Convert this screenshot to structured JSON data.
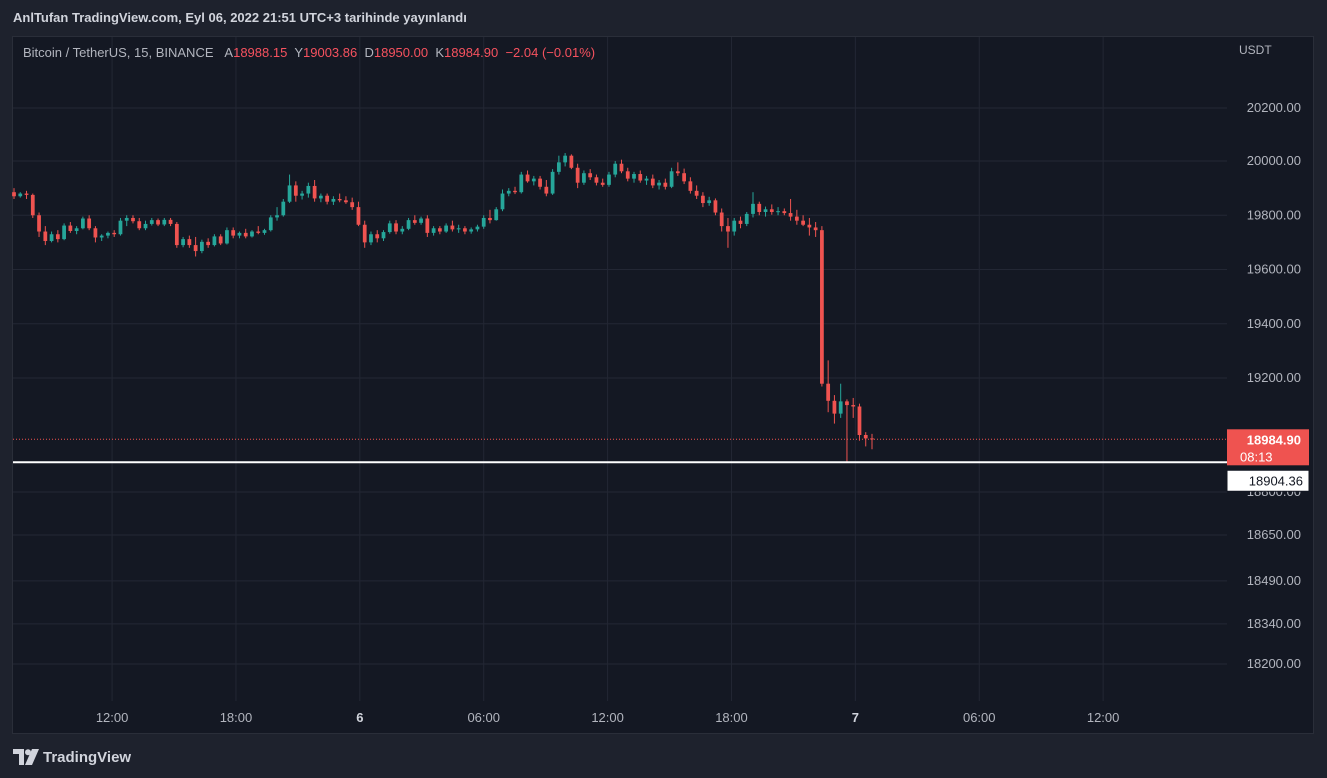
{
  "header": {
    "text": "AnlTufan TradingView.com, Eyl 06, 2022 21:51 UTC+3 tarihinde yayınlandı"
  },
  "legend": {
    "symbol": "Bitcoin / TetherUS, 15, BINANCE",
    "open_label": "A",
    "open": "18988.15",
    "high_label": "Y",
    "high": "19003.86",
    "low_label": "D",
    "low": "18950.00",
    "close_label": "K",
    "close": "18984.90",
    "change": "−2.04 (−0.01%)"
  },
  "axis": {
    "currency": "USDT"
  },
  "footer": {
    "brand": "TradingView"
  },
  "colors": {
    "up": "#26a69a",
    "down": "#ef5350",
    "background": "#141823",
    "grid": "#232734",
    "text": "#b2b5be"
  },
  "chart_data": {
    "type": "candlestick",
    "y_ticks": [
      "20200.00",
      "20000.00",
      "19800.00",
      "19600.00",
      "19400.00",
      "19200.00",
      "18800.00",
      "18650.00",
      "18490.00",
      "18340.00",
      "18200.00"
    ],
    "y_tick_values": [
      20200,
      20000,
      19800,
      19600,
      19400,
      19200,
      18800,
      18650,
      18490,
      18340,
      18200
    ],
    "x_ticks": [
      "12:00",
      "18:00",
      "6",
      "06:00",
      "12:00",
      "18:00",
      "7",
      "06:00",
      "12:00"
    ],
    "x_tick_hours": [
      12,
      18,
      24,
      30,
      36,
      42,
      48,
      54,
      60
    ],
    "x_tick_bold": [
      false,
      false,
      true,
      false,
      false,
      false,
      true,
      false,
      false
    ],
    "hour_range": [
      7.2,
      66
    ],
    "current_price": {
      "label": "18984.90",
      "countdown": "08:13",
      "value": 18984.9
    },
    "horizontal_line": {
      "label": "18904.36",
      "value": 18904.36
    },
    "candles": [
      {
        "o": 19885,
        "h": 19900,
        "l": 19860,
        "c": 19870
      },
      {
        "o": 19870,
        "h": 19885,
        "l": 19865,
        "c": 19880
      },
      {
        "o": 19880,
        "h": 19890,
        "l": 19860,
        "c": 19875
      },
      {
        "o": 19875,
        "h": 19880,
        "l": 19790,
        "c": 19800
      },
      {
        "o": 19800,
        "h": 19810,
        "l": 19720,
        "c": 19740
      },
      {
        "o": 19740,
        "h": 19760,
        "l": 19690,
        "c": 19705
      },
      {
        "o": 19705,
        "h": 19740,
        "l": 19700,
        "c": 19730
      },
      {
        "o": 19730,
        "h": 19745,
        "l": 19700,
        "c": 19712
      },
      {
        "o": 19712,
        "h": 19770,
        "l": 19708,
        "c": 19762
      },
      {
        "o": 19762,
        "h": 19775,
        "l": 19735,
        "c": 19742
      },
      {
        "o": 19742,
        "h": 19760,
        "l": 19730,
        "c": 19752
      },
      {
        "o": 19752,
        "h": 19795,
        "l": 19748,
        "c": 19788
      },
      {
        "o": 19788,
        "h": 19800,
        "l": 19745,
        "c": 19752
      },
      {
        "o": 19752,
        "h": 19760,
        "l": 19700,
        "c": 19718
      },
      {
        "o": 19718,
        "h": 19730,
        "l": 19705,
        "c": 19725
      },
      {
        "o": 19725,
        "h": 19740,
        "l": 19715,
        "c": 19735
      },
      {
        "o": 19735,
        "h": 19745,
        "l": 19720,
        "c": 19730
      },
      {
        "o": 19730,
        "h": 19790,
        "l": 19725,
        "c": 19780
      },
      {
        "o": 19780,
        "h": 19800,
        "l": 19760,
        "c": 19790
      },
      {
        "o": 19790,
        "h": 19800,
        "l": 19770,
        "c": 19778
      },
      {
        "o": 19778,
        "h": 19790,
        "l": 19745,
        "c": 19752
      },
      {
        "o": 19752,
        "h": 19780,
        "l": 19745,
        "c": 19768
      },
      {
        "o": 19768,
        "h": 19790,
        "l": 19762,
        "c": 19782
      },
      {
        "o": 19782,
        "h": 19788,
        "l": 19760,
        "c": 19766
      },
      {
        "o": 19766,
        "h": 19790,
        "l": 19760,
        "c": 19783
      },
      {
        "o": 19783,
        "h": 19790,
        "l": 19760,
        "c": 19768
      },
      {
        "o": 19768,
        "h": 19775,
        "l": 19680,
        "c": 19690
      },
      {
        "o": 19690,
        "h": 19720,
        "l": 19682,
        "c": 19712
      },
      {
        "o": 19712,
        "h": 19725,
        "l": 19680,
        "c": 19690
      },
      {
        "o": 19690,
        "h": 19720,
        "l": 19648,
        "c": 19668
      },
      {
        "o": 19668,
        "h": 19710,
        "l": 19660,
        "c": 19702
      },
      {
        "o": 19702,
        "h": 19715,
        "l": 19680,
        "c": 19690
      },
      {
        "o": 19690,
        "h": 19730,
        "l": 19685,
        "c": 19722
      },
      {
        "o": 19722,
        "h": 19730,
        "l": 19690,
        "c": 19696
      },
      {
        "o": 19696,
        "h": 19755,
        "l": 19692,
        "c": 19745
      },
      {
        "o": 19745,
        "h": 19755,
        "l": 19715,
        "c": 19725
      },
      {
        "o": 19725,
        "h": 19740,
        "l": 19715,
        "c": 19735
      },
      {
        "o": 19735,
        "h": 19750,
        "l": 19715,
        "c": 19722
      },
      {
        "o": 19722,
        "h": 19745,
        "l": 19718,
        "c": 19740
      },
      {
        "o": 19740,
        "h": 19760,
        "l": 19730,
        "c": 19735
      },
      {
        "o": 19735,
        "h": 19750,
        "l": 19728,
        "c": 19745
      },
      {
        "o": 19745,
        "h": 19800,
        "l": 19740,
        "c": 19792
      },
      {
        "o": 19792,
        "h": 19830,
        "l": 19780,
        "c": 19800
      },
      {
        "o": 19800,
        "h": 19860,
        "l": 19795,
        "c": 19850
      },
      {
        "o": 19850,
        "h": 19950,
        "l": 19845,
        "c": 19910
      },
      {
        "o": 19910,
        "h": 19925,
        "l": 19850,
        "c": 19872
      },
      {
        "o": 19872,
        "h": 19890,
        "l": 19858,
        "c": 19880
      },
      {
        "o": 19880,
        "h": 19920,
        "l": 19865,
        "c": 19908
      },
      {
        "o": 19908,
        "h": 19930,
        "l": 19850,
        "c": 19862
      },
      {
        "o": 19862,
        "h": 19880,
        "l": 19848,
        "c": 19872
      },
      {
        "o": 19872,
        "h": 19880,
        "l": 19840,
        "c": 19850
      },
      {
        "o": 19850,
        "h": 19870,
        "l": 19838,
        "c": 19860
      },
      {
        "o": 19860,
        "h": 19880,
        "l": 19848,
        "c": 19855
      },
      {
        "o": 19855,
        "h": 19870,
        "l": 19842,
        "c": 19848
      },
      {
        "o": 19848,
        "h": 19865,
        "l": 19820,
        "c": 19830
      },
      {
        "o": 19830,
        "h": 19850,
        "l": 19760,
        "c": 19765
      },
      {
        "o": 19765,
        "h": 19780,
        "l": 19680,
        "c": 19700
      },
      {
        "o": 19700,
        "h": 19740,
        "l": 19690,
        "c": 19730
      },
      {
        "o": 19730,
        "h": 19745,
        "l": 19700,
        "c": 19715
      },
      {
        "o": 19715,
        "h": 19745,
        "l": 19705,
        "c": 19738
      },
      {
        "o": 19738,
        "h": 19780,
        "l": 19732,
        "c": 19770
      },
      {
        "o": 19770,
        "h": 19782,
        "l": 19730,
        "c": 19740
      },
      {
        "o": 19740,
        "h": 19760,
        "l": 19730,
        "c": 19750
      },
      {
        "o": 19750,
        "h": 19790,
        "l": 19745,
        "c": 19782
      },
      {
        "o": 19782,
        "h": 19800,
        "l": 19765,
        "c": 19772
      },
      {
        "o": 19772,
        "h": 19795,
        "l": 19765,
        "c": 19788
      },
      {
        "o": 19788,
        "h": 19800,
        "l": 19720,
        "c": 19735
      },
      {
        "o": 19735,
        "h": 19760,
        "l": 19725,
        "c": 19752
      },
      {
        "o": 19752,
        "h": 19760,
        "l": 19730,
        "c": 19740
      },
      {
        "o": 19740,
        "h": 19770,
        "l": 19735,
        "c": 19762
      },
      {
        "o": 19762,
        "h": 19780,
        "l": 19740,
        "c": 19748
      },
      {
        "o": 19748,
        "h": 19765,
        "l": 19735,
        "c": 19752
      },
      {
        "o": 19752,
        "h": 19760,
        "l": 19730,
        "c": 19740
      },
      {
        "o": 19740,
        "h": 19755,
        "l": 19732,
        "c": 19748
      },
      {
        "o": 19748,
        "h": 19765,
        "l": 19740,
        "c": 19758
      },
      {
        "o": 19758,
        "h": 19800,
        "l": 19750,
        "c": 19790
      },
      {
        "o": 19790,
        "h": 19820,
        "l": 19770,
        "c": 19782
      },
      {
        "o": 19782,
        "h": 19830,
        "l": 19780,
        "c": 19822
      },
      {
        "o": 19822,
        "h": 19895,
        "l": 19815,
        "c": 19880
      },
      {
        "o": 19880,
        "h": 19900,
        "l": 19870,
        "c": 19890
      },
      {
        "o": 19890,
        "h": 19905,
        "l": 19878,
        "c": 19885
      },
      {
        "o": 19885,
        "h": 19960,
        "l": 19880,
        "c": 19950
      },
      {
        "o": 19950,
        "h": 19965,
        "l": 19920,
        "c": 19925
      },
      {
        "o": 19925,
        "h": 19945,
        "l": 19910,
        "c": 19935
      },
      {
        "o": 19935,
        "h": 19945,
        "l": 19895,
        "c": 19905
      },
      {
        "o": 19905,
        "h": 19930,
        "l": 19870,
        "c": 19880
      },
      {
        "o": 19880,
        "h": 19970,
        "l": 19875,
        "c": 19960
      },
      {
        "o": 19960,
        "h": 20020,
        "l": 19950,
        "c": 19995
      },
      {
        "o": 19995,
        "h": 20030,
        "l": 19980,
        "c": 20020
      },
      {
        "o": 20020,
        "h": 20025,
        "l": 19970,
        "c": 19975
      },
      {
        "o": 19975,
        "h": 19990,
        "l": 19900,
        "c": 19920
      },
      {
        "o": 19920,
        "h": 19965,
        "l": 19912,
        "c": 19955
      },
      {
        "o": 19955,
        "h": 19970,
        "l": 19930,
        "c": 19940
      },
      {
        "o": 19940,
        "h": 19950,
        "l": 19910,
        "c": 19920
      },
      {
        "o": 19920,
        "h": 19935,
        "l": 19905,
        "c": 19912
      },
      {
        "o": 19912,
        "h": 19960,
        "l": 19905,
        "c": 19950
      },
      {
        "o": 19950,
        "h": 20000,
        "l": 19940,
        "c": 19990
      },
      {
        "o": 19990,
        "h": 20005,
        "l": 19955,
        "c": 19962
      },
      {
        "o": 19962,
        "h": 19975,
        "l": 19925,
        "c": 19935
      },
      {
        "o": 19935,
        "h": 19960,
        "l": 19920,
        "c": 19952
      },
      {
        "o": 19952,
        "h": 19965,
        "l": 19920,
        "c": 19928
      },
      {
        "o": 19928,
        "h": 19945,
        "l": 19912,
        "c": 19935
      },
      {
        "o": 19935,
        "h": 19950,
        "l": 19900,
        "c": 19910
      },
      {
        "o": 19910,
        "h": 19930,
        "l": 19895,
        "c": 19920
      },
      {
        "o": 19920,
        "h": 19935,
        "l": 19895,
        "c": 19905
      },
      {
        "o": 19905,
        "h": 19975,
        "l": 19900,
        "c": 19962
      },
      {
        "o": 19962,
        "h": 19995,
        "l": 19945,
        "c": 19955
      },
      {
        "o": 19955,
        "h": 19972,
        "l": 19915,
        "c": 19925
      },
      {
        "o": 19925,
        "h": 19940,
        "l": 19880,
        "c": 19890
      },
      {
        "o": 19890,
        "h": 19910,
        "l": 19860,
        "c": 19872
      },
      {
        "o": 19872,
        "h": 19885,
        "l": 19830,
        "c": 19845
      },
      {
        "o": 19845,
        "h": 19868,
        "l": 19835,
        "c": 19855
      },
      {
        "o": 19855,
        "h": 19862,
        "l": 19800,
        "c": 19810
      },
      {
        "o": 19810,
        "h": 19825,
        "l": 19740,
        "c": 19760
      },
      {
        "o": 19760,
        "h": 19790,
        "l": 19680,
        "c": 19740
      },
      {
        "o": 19740,
        "h": 19790,
        "l": 19725,
        "c": 19780
      },
      {
        "o": 19780,
        "h": 19795,
        "l": 19752,
        "c": 19768
      },
      {
        "o": 19768,
        "h": 19812,
        "l": 19760,
        "c": 19805
      },
      {
        "o": 19805,
        "h": 19885,
        "l": 19792,
        "c": 19842
      },
      {
        "o": 19842,
        "h": 19850,
        "l": 19800,
        "c": 19812
      },
      {
        "o": 19812,
        "h": 19832,
        "l": 19795,
        "c": 19822
      },
      {
        "o": 19822,
        "h": 19840,
        "l": 19802,
        "c": 19812
      },
      {
        "o": 19812,
        "h": 19830,
        "l": 19800,
        "c": 19815
      },
      {
        "o": 19815,
        "h": 19825,
        "l": 19800,
        "c": 19808
      },
      {
        "o": 19808,
        "h": 19860,
        "l": 19780,
        "c": 19795
      },
      {
        "o": 19795,
        "h": 19820,
        "l": 19765,
        "c": 19780
      },
      {
        "o": 19780,
        "h": 19800,
        "l": 19760,
        "c": 19765
      },
      {
        "o": 19765,
        "h": 19790,
        "l": 19725,
        "c": 19755
      },
      {
        "o": 19755,
        "h": 19775,
        "l": 19720,
        "c": 19745
      },
      {
        "o": 19745,
        "h": 19760,
        "l": 19170,
        "c": 19180
      },
      {
        "o": 19180,
        "h": 19265,
        "l": 19080,
        "c": 19120
      },
      {
        "o": 19120,
        "h": 19140,
        "l": 19040,
        "c": 19075
      },
      {
        "o": 19075,
        "h": 19180,
        "l": 19060,
        "c": 19118
      },
      {
        "o": 19118,
        "h": 19125,
        "l": 18905,
        "c": 19105
      },
      {
        "o": 19105,
        "h": 19130,
        "l": 19060,
        "c": 19100
      },
      {
        "o": 19100,
        "h": 19110,
        "l": 18980,
        "c": 19000
      },
      {
        "o": 19000,
        "h": 19010,
        "l": 18960,
        "c": 18988
      },
      {
        "o": 18988,
        "h": 19004,
        "l": 18950,
        "c": 18985
      }
    ]
  }
}
